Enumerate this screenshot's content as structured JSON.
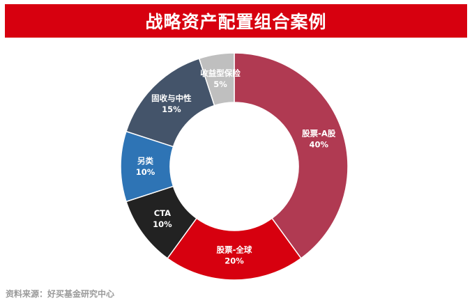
{
  "header": {
    "title": "战略资产配置组合案例"
  },
  "footer": {
    "source": "资料来源：好买基金研究中心"
  },
  "colors": {
    "banner": "#d7000f"
  },
  "chart_data": {
    "type": "pie",
    "donut": true,
    "title": "",
    "slices": [
      {
        "label": "股票-A股",
        "percent_label": "40%",
        "value": 40,
        "color": "#b03a52"
      },
      {
        "label": "股票-全球",
        "percent_label": "20%",
        "value": 20,
        "color": "#d7000f"
      },
      {
        "label": "CTA",
        "percent_label": "10%",
        "value": 10,
        "color": "#222222"
      },
      {
        "label": "另类",
        "percent_label": "10%",
        "value": 10,
        "color": "#2e74b5"
      },
      {
        "label": "固收与中性",
        "percent_label": "15%",
        "value": 15,
        "color": "#44546a"
      },
      {
        "label": "收益型保险",
        "percent_label": "5%",
        "value": 5,
        "color": "#bfbfbf"
      }
    ]
  }
}
